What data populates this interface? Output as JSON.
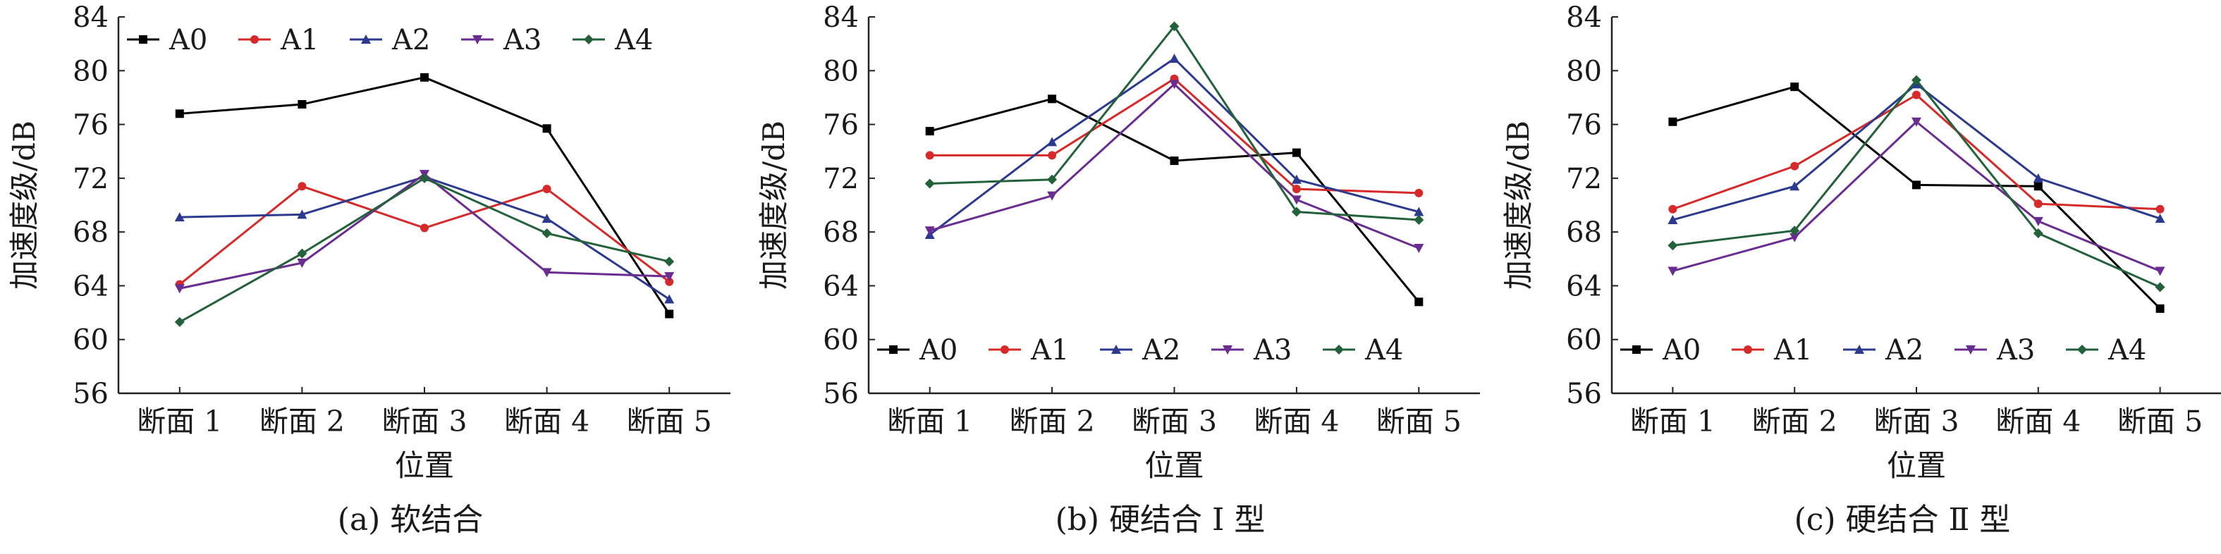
{
  "chart_data": [
    {
      "type": "line",
      "caption": "(a) 软结合",
      "xlabel": "位置",
      "ylabel": "加速度级/dB",
      "categories": [
        "断面 1",
        "断面 2",
        "断面 3",
        "断面 4",
        "断面 5"
      ],
      "ylim": [
        56,
        84
      ],
      "yticks": [
        56,
        60,
        64,
        68,
        72,
        76,
        80,
        84
      ],
      "grid": false,
      "legend_position": "top",
      "series": [
        {
          "name": "A0",
          "color": "#000000",
          "marker": "square",
          "values": [
            76.8,
            77.5,
            79.5,
            75.7,
            61.9
          ]
        },
        {
          "name": "A1",
          "color": "#d62a2a",
          "marker": "circle",
          "values": [
            64.1,
            71.4,
            68.3,
            71.2,
            64.3
          ]
        },
        {
          "name": "A2",
          "color": "#2b3a8f",
          "marker": "triangle",
          "values": [
            69.1,
            69.3,
            72.1,
            69.0,
            63.0
          ]
        },
        {
          "name": "A3",
          "color": "#6a2c91",
          "marker": "tri-down",
          "values": [
            63.8,
            65.7,
            72.3,
            65.0,
            64.7
          ]
        },
        {
          "name": "A4",
          "color": "#23613a",
          "marker": "diamond",
          "values": [
            61.3,
            66.4,
            72.0,
            67.9,
            65.8
          ]
        }
      ]
    },
    {
      "type": "line",
      "caption": "(b) 硬结合 Ⅰ 型",
      "xlabel": "位置",
      "ylabel": "加速度级/dB",
      "categories": [
        "断面 1",
        "断面 2",
        "断面 3",
        "断面 4",
        "断面 5"
      ],
      "ylim": [
        56,
        84
      ],
      "yticks": [
        56,
        60,
        64,
        68,
        72,
        76,
        80,
        84
      ],
      "grid": false,
      "legend_position": "bottom",
      "series": [
        {
          "name": "A0",
          "color": "#000000",
          "marker": "square",
          "values": [
            75.5,
            77.9,
            73.3,
            73.9,
            62.8
          ]
        },
        {
          "name": "A1",
          "color": "#d62a2a",
          "marker": "circle",
          "values": [
            73.7,
            73.7,
            79.4,
            71.2,
            70.9
          ]
        },
        {
          "name": "A2",
          "color": "#2b3a8f",
          "marker": "triangle",
          "values": [
            67.8,
            74.7,
            80.9,
            71.9,
            69.5
          ]
        },
        {
          "name": "A3",
          "color": "#6a2c91",
          "marker": "tri-down",
          "values": [
            68.1,
            70.7,
            79.0,
            70.4,
            66.8
          ]
        },
        {
          "name": "A4",
          "color": "#23613a",
          "marker": "diamond",
          "values": [
            71.6,
            71.9,
            83.3,
            69.5,
            68.9
          ]
        }
      ]
    },
    {
      "type": "line",
      "caption": "(c) 硬结合 Ⅱ 型",
      "xlabel": "位置",
      "ylabel": "加速度级/dB",
      "categories": [
        "断面 1",
        "断面 2",
        "断面 3",
        "断面 4",
        "断面 5"
      ],
      "ylim": [
        56,
        84
      ],
      "yticks": [
        56,
        60,
        64,
        68,
        72,
        76,
        80,
        84
      ],
      "grid": false,
      "legend_position": "bottom",
      "series": [
        {
          "name": "A0",
          "color": "#000000",
          "marker": "square",
          "values": [
            76.2,
            78.8,
            71.5,
            71.4,
            62.3
          ]
        },
        {
          "name": "A1",
          "color": "#d62a2a",
          "marker": "circle",
          "values": [
            69.7,
            72.9,
            78.2,
            70.1,
            69.7
          ]
        },
        {
          "name": "A2",
          "color": "#2b3a8f",
          "marker": "triangle",
          "values": [
            68.9,
            71.4,
            79.0,
            72.0,
            69.0
          ]
        },
        {
          "name": "A3",
          "color": "#6a2c91",
          "marker": "tri-down",
          "values": [
            65.1,
            67.6,
            76.2,
            68.8,
            65.1
          ]
        },
        {
          "name": "A4",
          "color": "#23613a",
          "marker": "diamond",
          "values": [
            67.0,
            68.1,
            79.3,
            67.9,
            63.9
          ]
        }
      ]
    }
  ]
}
